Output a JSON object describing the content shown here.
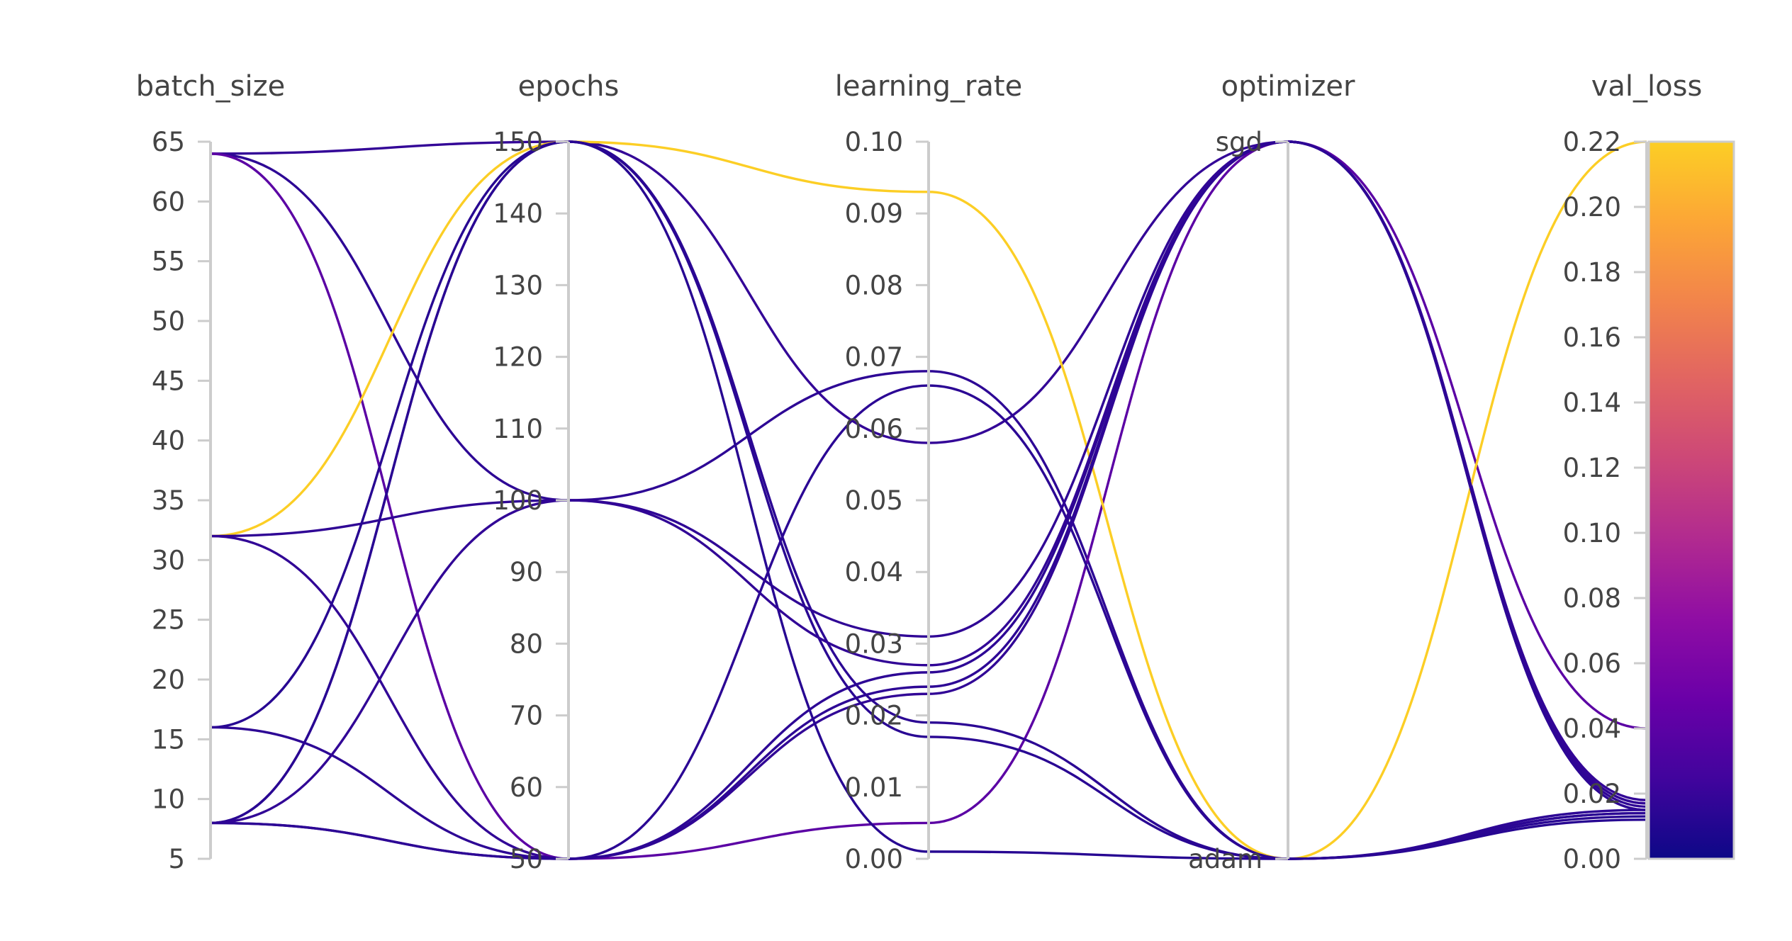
{
  "chart_data": {
    "type": "parallel_coordinates",
    "dimensions": [
      {
        "name": "batch_size",
        "range": [
          5,
          65
        ],
        "ticks": [
          "5",
          "10",
          "15",
          "20",
          "25",
          "30",
          "35",
          "40",
          "45",
          "50",
          "55",
          "60",
          "65"
        ],
        "categorical": false
      },
      {
        "name": "epochs",
        "range": [
          50,
          150
        ],
        "ticks": [
          "50",
          "60",
          "70",
          "80",
          "90",
          "100",
          "110",
          "120",
          "130",
          "140",
          "150"
        ],
        "categorical": false
      },
      {
        "name": "learning_rate",
        "range": [
          0,
          0.1
        ],
        "ticks": [
          "0.00",
          "0.01",
          "0.02",
          "0.03",
          "0.04",
          "0.05",
          "0.06",
          "0.07",
          "0.08",
          "0.09",
          "0.10"
        ],
        "categorical": false
      },
      {
        "name": "optimizer",
        "range": [
          0,
          1
        ],
        "ticks": [
          "adam",
          "sgd"
        ],
        "categorical": true
      },
      {
        "name": "val_loss",
        "range": [
          0,
          0.22
        ],
        "ticks": [
          "0.00",
          "0.02",
          "0.04",
          "0.06",
          "0.08",
          "0.10",
          "0.12",
          "0.14",
          "0.16",
          "0.18",
          "0.20",
          "0.22"
        ],
        "categorical": false
      }
    ],
    "colorscale": {
      "name": "plasma",
      "dimension": "val_loss",
      "range": [
        0,
        0.22
      ],
      "stops": [
        "#0d0887",
        "#41049d",
        "#6a00a8",
        "#8f0da4",
        "#b12a90",
        "#cc4778",
        "#e16462",
        "#f2844b",
        "#fca636",
        "#fcce25"
      ]
    },
    "rows": [
      {
        "batch_size": 64,
        "epochs": 150,
        "learning_rate": 0.058,
        "optimizer": "sgd",
        "val_loss": 0.018
      },
      {
        "batch_size": 64,
        "epochs": 100,
        "learning_rate": 0.068,
        "optimizer": "adam",
        "val_loss": 0.015
      },
      {
        "batch_size": 64,
        "epochs": 50,
        "learning_rate": 0.005,
        "optimizer": "sgd",
        "val_loss": 0.04
      },
      {
        "batch_size": 32,
        "epochs": 150,
        "learning_rate": 0.093,
        "optimizer": "adam",
        "val_loss": 0.22
      },
      {
        "batch_size": 32,
        "epochs": 100,
        "learning_rate": 0.031,
        "optimizer": "sgd",
        "val_loss": 0.016
      },
      {
        "batch_size": 32,
        "epochs": 50,
        "learning_rate": 0.023,
        "optimizer": "sgd",
        "val_loss": 0.017
      },
      {
        "batch_size": 16,
        "epochs": 150,
        "learning_rate": 0.001,
        "optimizer": "adam",
        "val_loss": 0.012
      },
      {
        "batch_size": 16,
        "epochs": 50,
        "learning_rate": 0.026,
        "optimizer": "sgd",
        "val_loss": 0.015
      },
      {
        "batch_size": 8,
        "epochs": 150,
        "learning_rate": 0.019,
        "optimizer": "adam",
        "val_loss": 0.014
      },
      {
        "batch_size": 8,
        "epochs": 150,
        "learning_rate": 0.017,
        "optimizer": "adam",
        "val_loss": 0.013
      },
      {
        "batch_size": 8,
        "epochs": 100,
        "learning_rate": 0.027,
        "optimizer": "sgd",
        "val_loss": 0.017
      },
      {
        "batch_size": 8,
        "epochs": 50,
        "learning_rate": 0.066,
        "optimizer": "adam",
        "val_loss": 0.014
      },
      {
        "batch_size": 8,
        "epochs": 50,
        "learning_rate": 0.024,
        "optimizer": "sgd",
        "val_loss": 0.015
      }
    ]
  }
}
